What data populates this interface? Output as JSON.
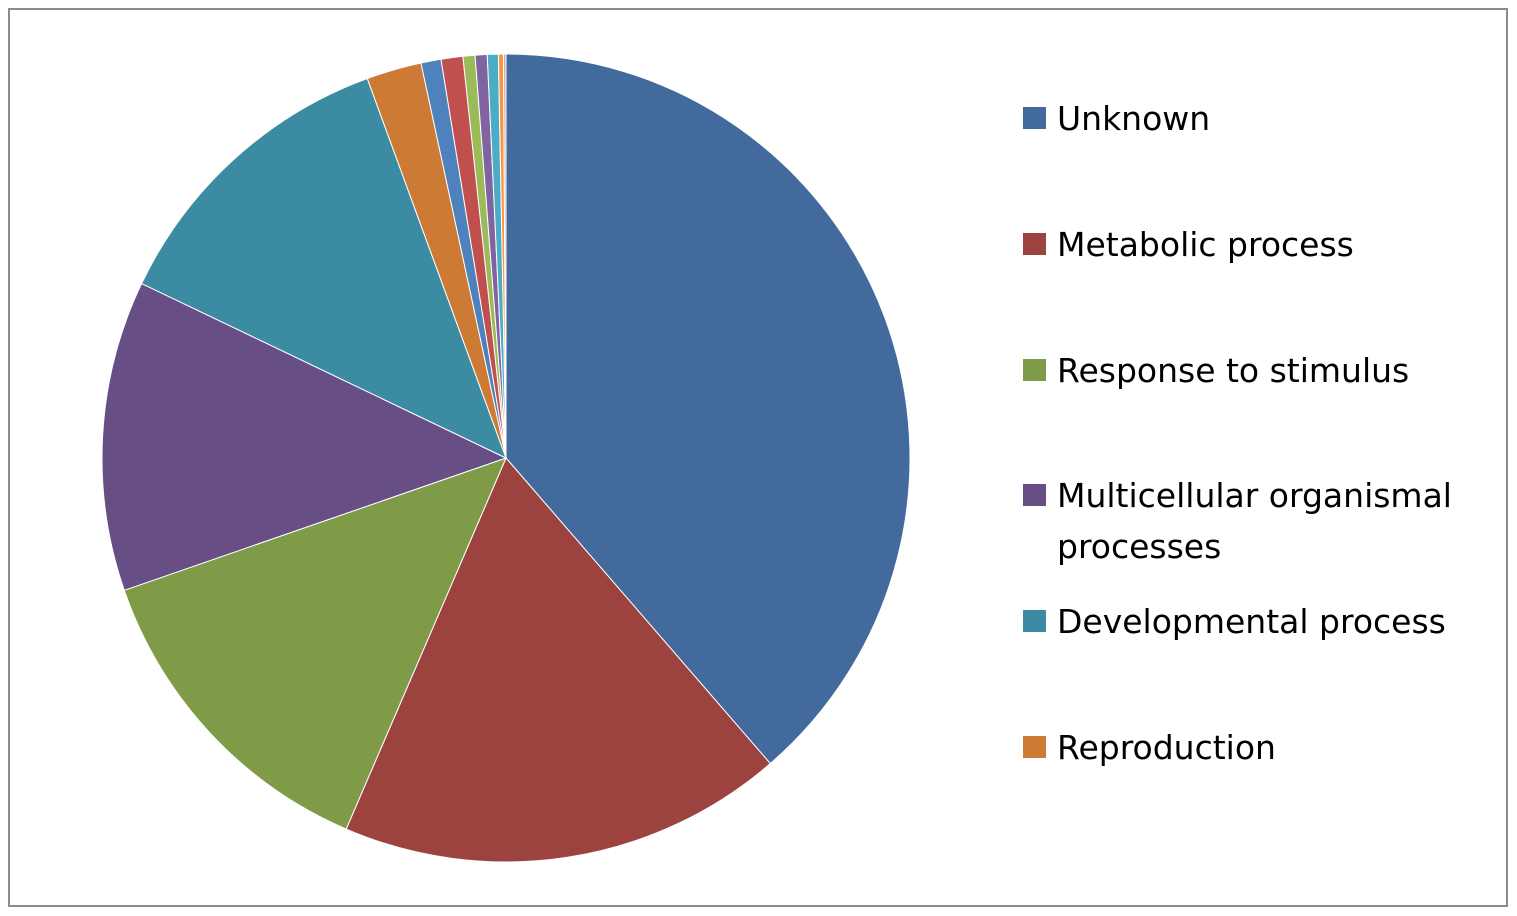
{
  "chart_data": {
    "type": "pie",
    "title": "",
    "start": "top, clockwise",
    "legend_position": "right",
    "slices": [
      {
        "name": "Unknown",
        "value": 38.6,
        "color": "#426A9C",
        "legend": true
      },
      {
        "name": "Metabolic process",
        "value": 17.8,
        "color": "#9C4340",
        "legend": true
      },
      {
        "name": "Response to stimulus",
        "value": 13.2,
        "color": "#7F9B47",
        "legend": true
      },
      {
        "name": "Multicellular organismal processes",
        "value": 12.4,
        "color": "#674F86",
        "legend": true
      },
      {
        "name": "Developmental process",
        "value": 12.3,
        "color": "#3B8BA2",
        "legend": true
      },
      {
        "name": "Reproduction",
        "value": 2.2,
        "color": "#CC7A34",
        "legend": true
      },
      {
        "name": "",
        "value": 0.8,
        "color": "#4F81BD",
        "legend": false
      },
      {
        "name": "",
        "value": 0.87,
        "color": "#C0504D",
        "legend": false
      },
      {
        "name": "",
        "value": 0.48,
        "color": "#9BBB59",
        "legend": false
      },
      {
        "name": "",
        "value": 0.48,
        "color": "#8064A2",
        "legend": false
      },
      {
        "name": "",
        "value": 0.44,
        "color": "#4BACC6",
        "legend": false
      },
      {
        "name": "",
        "value": 0.2,
        "color": "#F79646",
        "legend": false
      },
      {
        "name": "",
        "value": 0.1,
        "color": "#D8A8A8",
        "legend": false
      }
    ],
    "legend_lines": [
      [
        "Unknown"
      ],
      [
        "Metabolic process"
      ],
      [
        "Response to stimulus"
      ],
      [
        "Multicellular organismal",
        "processes"
      ],
      [
        "Developmental process"
      ],
      [
        "Reproduction"
      ]
    ]
  }
}
